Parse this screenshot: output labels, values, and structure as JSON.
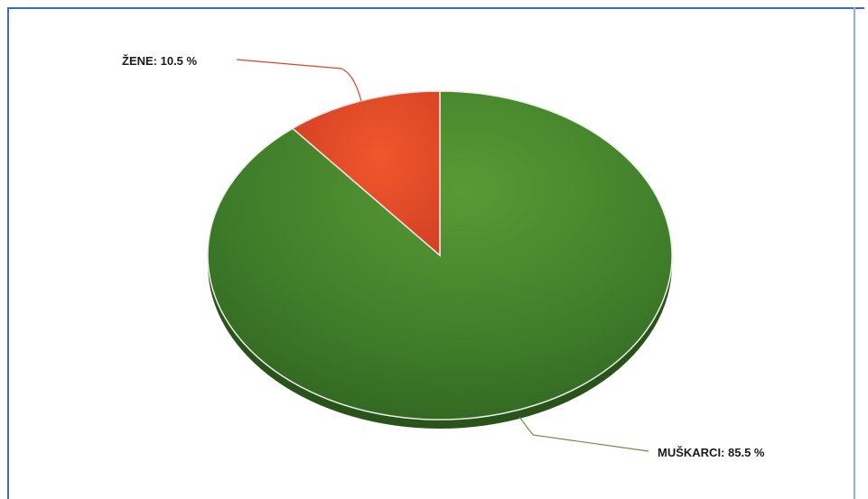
{
  "chart_data": {
    "type": "pie",
    "title": "",
    "slices": [
      {
        "label": "ŽENE",
        "value": 10.5,
        "display": "ŽENE: 10.5 %",
        "color": "#e0442a"
      },
      {
        "label": "MUŠKARCI",
        "value": 85.5,
        "display": "MUŠKARCI: 85.5 %",
        "color": "#3f7d2a"
      }
    ],
    "style": "3d-tilted"
  }
}
